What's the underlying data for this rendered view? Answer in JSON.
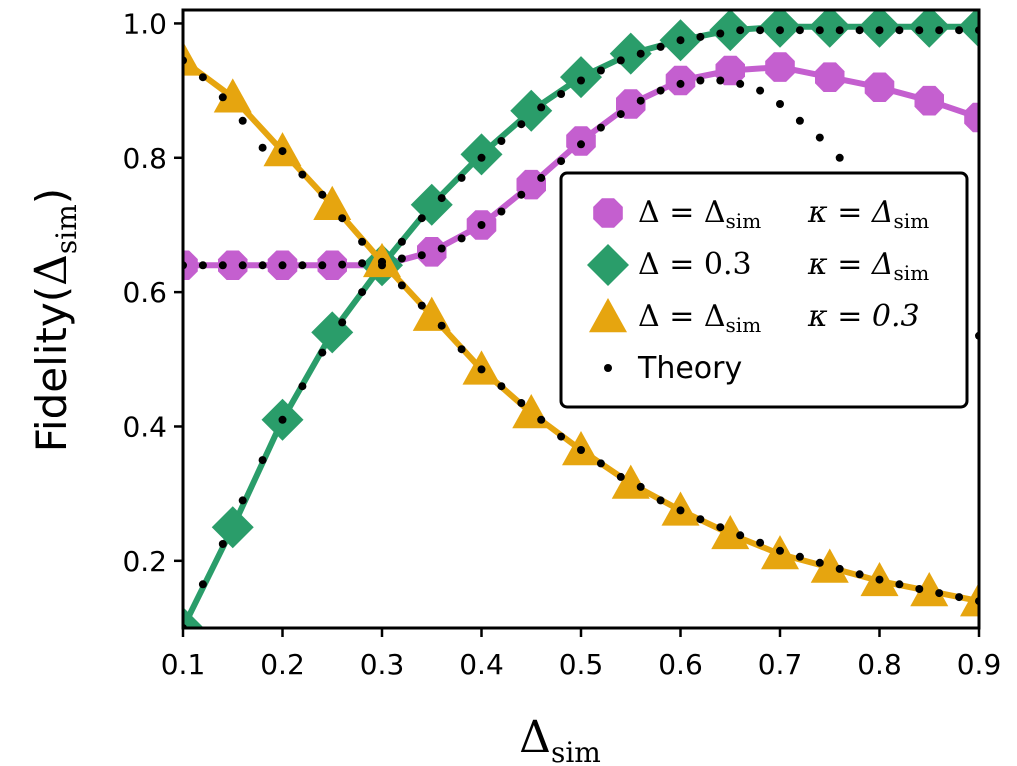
{
  "chart_data": {
    "type": "line",
    "title": "",
    "xlabel": "Δ",
    "xlabel_sub": "sim",
    "ylabel_prefix": "Fidelity(",
    "ylabel_delta": "Δ",
    "ylabel_sub": "sim",
    "ylabel_suffix": ")",
    "xlim": [
      0.1,
      0.9
    ],
    "ylim": [
      0.1,
      1.02
    ],
    "x_ticks": [
      0.1,
      0.2,
      0.3,
      0.4,
      0.5,
      0.6,
      0.7,
      0.8,
      0.9
    ],
    "x_tick_labels": [
      "0.1",
      "0.2",
      "0.3",
      "0.4",
      "0.5",
      "0.6",
      "0.7",
      "0.8",
      "0.9"
    ],
    "y_ticks": [
      0.2,
      0.4,
      0.6,
      0.8,
      1.0
    ],
    "y_tick_labels": [
      "0.2",
      "0.4",
      "0.6",
      "0.8",
      "1.0"
    ],
    "grid": false,
    "legend_position": "center-right",
    "x": [
      0.1,
      0.15,
      0.2,
      0.25,
      0.3,
      0.35,
      0.4,
      0.45,
      0.5,
      0.55,
      0.6,
      0.65,
      0.7,
      0.75,
      0.8,
      0.85,
      0.9
    ],
    "series": [
      {
        "name": "Δ = Δsim, κ = Δsim",
        "legend_left": "Δ = Δ",
        "legend_left_sub": "sim",
        "legend_right": "κ = Δ",
        "legend_right_sub": "sim",
        "color": "#c45fcf",
        "marker": "octagon",
        "values": [
          0.64,
          0.64,
          0.64,
          0.64,
          0.64,
          0.66,
          0.7,
          0.76,
          0.825,
          0.88,
          0.915,
          0.93,
          0.935,
          0.92,
          0.905,
          0.885,
          0.86
        ]
      },
      {
        "name": "Δ = 0.3, κ = Δsim",
        "legend_left": "Δ = 0.3",
        "legend_left_sub": "",
        "legend_right": "κ = Δ",
        "legend_right_sub": "sim",
        "color": "#2a9d6a",
        "marker": "diamond",
        "values": [
          0.1,
          0.25,
          0.41,
          0.54,
          0.64,
          0.73,
          0.805,
          0.87,
          0.92,
          0.955,
          0.975,
          0.99,
          0.995,
          0.995,
          0.995,
          0.995,
          0.995
        ]
      },
      {
        "name": "Δ = Δsim, κ = 0.3",
        "legend_left": "Δ = Δ",
        "legend_left_sub": "sim",
        "legend_right": "κ = 0.3",
        "legend_right_sub": "",
        "color": "#e6a50f",
        "marker": "triangle",
        "values": [
          0.945,
          0.89,
          0.81,
          0.73,
          0.645,
          0.565,
          0.485,
          0.42,
          0.365,
          0.315,
          0.275,
          0.24,
          0.21,
          0.19,
          0.17,
          0.155,
          0.14
        ]
      }
    ],
    "theory": {
      "name": "Theory",
      "color": "#000000",
      "x": [
        0.1,
        0.12,
        0.14,
        0.16,
        0.18,
        0.2,
        0.22,
        0.24,
        0.26,
        0.28,
        0.3,
        0.32,
        0.34,
        0.36,
        0.38,
        0.4,
        0.42,
        0.44,
        0.46,
        0.48,
        0.5,
        0.52,
        0.54,
        0.56,
        0.58,
        0.6,
        0.62,
        0.64,
        0.66,
        0.68,
        0.7,
        0.72,
        0.74,
        0.76,
        0.78,
        0.8,
        0.82,
        0.84,
        0.86,
        0.88,
        0.9
      ],
      "curves": [
        [
          0.64,
          0.64,
          0.64,
          0.64,
          0.64,
          0.64,
          0.64,
          0.64,
          0.641,
          0.643,
          0.645,
          0.65,
          0.655,
          0.665,
          0.68,
          0.7,
          0.72,
          0.745,
          0.77,
          0.795,
          0.82,
          0.845,
          0.865,
          0.885,
          0.9,
          0.91,
          0.915,
          0.915,
          0.91,
          0.9,
          0.88,
          0.855,
          0.83,
          0.8,
          0.765,
          0.73,
          0.695,
          0.655,
          0.615,
          0.575,
          0.535
        ],
        [
          0.1,
          0.165,
          0.225,
          0.29,
          0.35,
          0.41,
          0.46,
          0.51,
          0.555,
          0.6,
          0.64,
          0.675,
          0.71,
          0.74,
          0.77,
          0.8,
          0.825,
          0.85,
          0.875,
          0.895,
          0.915,
          0.93,
          0.945,
          0.955,
          0.965,
          0.975,
          0.98,
          0.985,
          0.99,
          0.99,
          0.99,
          0.99,
          0.99,
          0.99,
          0.99,
          0.99,
          0.99,
          0.99,
          0.99,
          0.99,
          0.99
        ],
        [
          0.945,
          0.92,
          0.89,
          0.855,
          0.815,
          0.81,
          0.775,
          0.745,
          0.71,
          0.675,
          0.645,
          0.61,
          0.58,
          0.55,
          0.515,
          0.485,
          0.46,
          0.435,
          0.41,
          0.385,
          0.365,
          0.345,
          0.325,
          0.31,
          0.29,
          0.275,
          0.262,
          0.25,
          0.238,
          0.227,
          0.215,
          0.206,
          0.197,
          0.188,
          0.18,
          0.172,
          0.165,
          0.158,
          0.152,
          0.146,
          0.14
        ]
      ]
    }
  }
}
